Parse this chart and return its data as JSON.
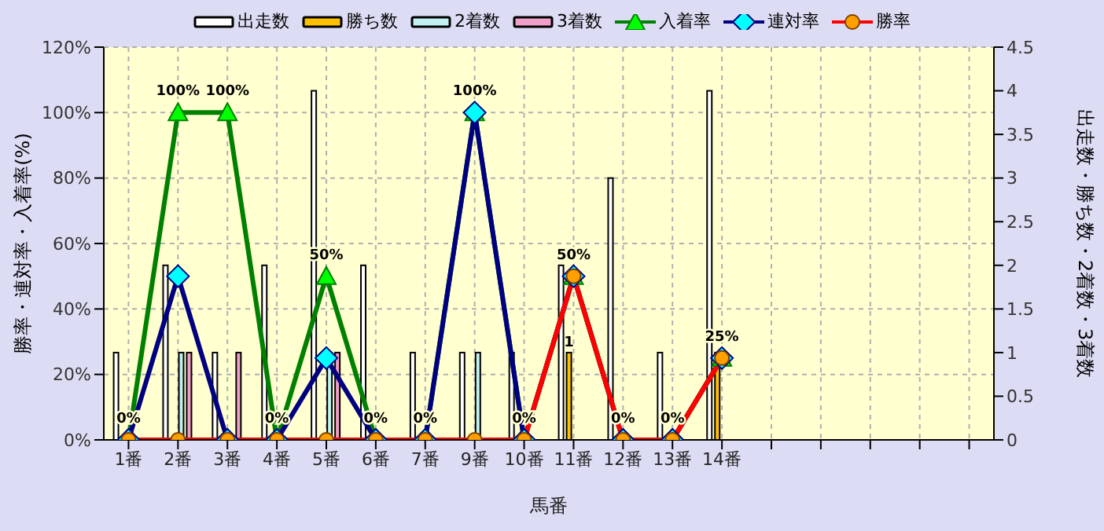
{
  "chart_data": {
    "type": "bar",
    "xlabel": "馬番",
    "ylabel": "勝率・連対率・入着率(%)",
    "y2label": "出走数・勝ち数・2着数・3着数",
    "categories": [
      "1番",
      "2番",
      "3番",
      "4番",
      "5番",
      "6番",
      "7番",
      "9番",
      "10番",
      "11番",
      "12番",
      "13番",
      "14番",
      null,
      null,
      null,
      null,
      null
    ],
    "series": [
      {
        "name": "出走数",
        "axis": "y2",
        "color": "#ffffff",
        "values": [
          1,
          2,
          1,
          2,
          4,
          2,
          1,
          1,
          1,
          2,
          3,
          1,
          4,
          null,
          null,
          null,
          null,
          null
        ]
      },
      {
        "name": "勝ち数",
        "axis": "y2",
        "color": "#ffc000",
        "values": [
          0,
          0,
          0,
          0,
          0,
          0,
          0,
          0,
          0,
          1,
          0,
          0,
          1,
          null,
          null,
          null,
          null,
          null
        ],
        "value_labels": [
          null,
          null,
          null,
          null,
          null,
          null,
          null,
          null,
          null,
          "1",
          null,
          null,
          null,
          null,
          null,
          null,
          null,
          null
        ]
      },
      {
        "name": "2着数",
        "axis": "y2",
        "color": "#c0f0f0",
        "values": [
          0,
          1,
          0,
          0,
          1,
          0,
          0,
          1,
          0,
          0,
          0,
          0,
          0,
          null,
          null,
          null,
          null,
          null
        ]
      },
      {
        "name": "3着数",
        "axis": "y2",
        "color": "#f0a0c8",
        "values": [
          0,
          1,
          1,
          0,
          1,
          0,
          0,
          0,
          0,
          0,
          0,
          0,
          0,
          null,
          null,
          null,
          null,
          null
        ]
      },
      {
        "name": "入着率",
        "type": "line",
        "color": "#008000",
        "marker": "triangle",
        "values": [
          0,
          100,
          100,
          0,
          50,
          0,
          0,
          100,
          0,
          50,
          0,
          0,
          25,
          null,
          null,
          null,
          null,
          null
        ],
        "value_labels": [
          "0%",
          "100%",
          "100%",
          "0%",
          "50%",
          "0%",
          "0%",
          "100%",
          "0%",
          "50%",
          "0%",
          "0%",
          "25%",
          null,
          null,
          null,
          null,
          null
        ]
      },
      {
        "name": "連対率",
        "type": "line",
        "color": "#000080",
        "marker": "diamond",
        "values": [
          0,
          50,
          0,
          0,
          25,
          0,
          0,
          100,
          0,
          50,
          0,
          0,
          25,
          null,
          null,
          null,
          null,
          null
        ]
      },
      {
        "name": "勝率",
        "type": "line",
        "color": "#ff0000",
        "marker": "circle",
        "values": [
          0,
          0,
          0,
          0,
          0,
          0,
          0,
          0,
          0,
          50,
          0,
          0,
          25,
          null,
          null,
          null,
          null,
          null
        ]
      }
    ],
    "ylim": [
      0,
      120
    ],
    "yticks": [
      {
        "value": 0,
        "label": "0%"
      },
      {
        "value": 20,
        "label": "20%"
      },
      {
        "value": 40,
        "label": "40%"
      },
      {
        "value": 60,
        "label": "60%"
      },
      {
        "value": 80,
        "label": "80%"
      },
      {
        "value": 100,
        "label": "100%"
      },
      {
        "value": 120,
        "label": "120%"
      }
    ],
    "y2lim": [
      0,
      4.5
    ],
    "y2ticks": [
      0,
      0.5,
      1,
      1.5,
      2,
      2.5,
      3,
      3.5,
      4,
      4.5
    ],
    "grid": true,
    "legend": "top"
  }
}
